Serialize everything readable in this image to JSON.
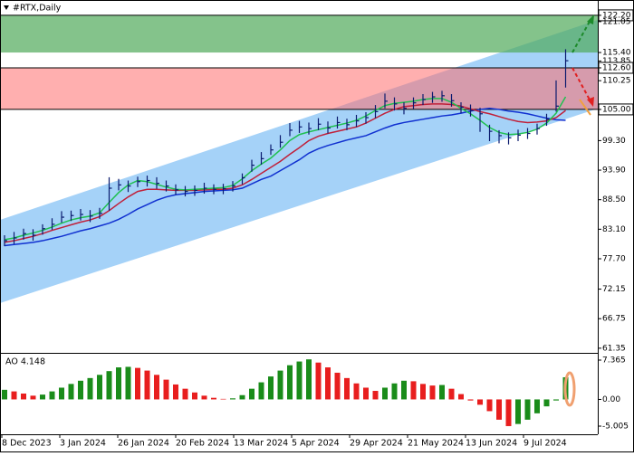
{
  "chart_data": [
    {
      "type": "ohlc",
      "title": "#RTX,Daily",
      "x_labels": [
        "8 Dec 2023",
        "3 Jan 2024",
        "26 Jan 2024",
        "20 Feb 2024",
        "13 Mar 2024",
        "5 Apr 2024",
        "29 Apr 2024",
        "21 May 2024",
        "13 Jun 2024",
        "9 Jul 2024"
      ],
      "ylim": [
        60.5,
        125.0
      ],
      "yticks": [
        {
          "value": 122.2,
          "label": "122.20"
        },
        {
          "value": 121.05,
          "label": "121.05"
        },
        {
          "value": 115.4,
          "label": "115.40"
        },
        {
          "value": 113.85,
          "label": "113.85"
        },
        {
          "value": 112.6,
          "label": "112.60"
        },
        {
          "value": 110.25,
          "label": "110.25"
        },
        {
          "value": 105.0,
          "label": "105.00"
        },
        {
          "value": 99.3,
          "label": "99.30"
        },
        {
          "value": 93.9,
          "label": "93.90"
        },
        {
          "value": 88.5,
          "label": "88.50"
        },
        {
          "value": 83.1,
          "label": "83.10"
        },
        {
          "value": 77.7,
          "label": "77.70"
        },
        {
          "value": 72.15,
          "label": "72.15"
        },
        {
          "value": 66.75,
          "label": "66.75"
        },
        {
          "value": 61.35,
          "label": "61.35"
        }
      ],
      "grid": false,
      "marked_levels": [
        122.2,
        112.6,
        105.0
      ],
      "zones": [
        {
          "from": 122.2,
          "to": 115.4,
          "color": "rgba(80,170,90,0.7)"
        },
        {
          "from": 112.6,
          "to": 105.0,
          "color": "rgba(255,110,110,0.55)"
        }
      ],
      "bar_color": "#0a1a6e",
      "high": [
        82.0,
        82.6,
        83.2,
        83.1,
        84.0,
        85.1,
        86.4,
        86.5,
        86.8,
        86.6,
        87.0,
        92.6,
        92.3,
        92.0,
        92.7,
        92.9,
        92.6,
        92.0,
        91.3,
        91.0,
        91.1,
        91.6,
        91.3,
        91.4,
        91.9,
        93.3,
        95.8,
        97.2,
        98.6,
        100.3,
        102.5,
        102.9,
        102.6,
        103.4,
        102.8,
        103.7,
        103.3,
        104.0,
        104.5,
        105.8,
        107.9,
        107.2,
        106.3,
        107.2,
        107.8,
        108.2,
        108.4,
        107.8,
        106.3,
        105.9,
        105.3,
        102.2,
        101.2,
        100.8,
        101.3,
        101.6,
        102.4,
        104.2,
        110.3,
        116.0
      ],
      "low": [
        80.0,
        80.4,
        81.2,
        81.0,
        82.1,
        83.0,
        84.3,
        84.6,
        84.7,
        84.4,
        85.0,
        86.5,
        90.2,
        89.9,
        90.8,
        90.9,
        90.5,
        90.0,
        89.4,
        89.1,
        89.2,
        89.6,
        89.5,
        89.5,
        90.0,
        91.3,
        93.6,
        94.9,
        96.7,
        98.0,
        100.1,
        100.7,
        100.4,
        101.2,
        100.6,
        101.5,
        101.2,
        101.8,
        102.4,
        103.4,
        105.2,
        104.8,
        104.1,
        105.1,
        105.8,
        106.2,
        106.4,
        105.5,
        104.3,
        103.7,
        100.9,
        99.2,
        98.8,
        98.6,
        99.2,
        99.6,
        100.4,
        102.0,
        104.6,
        109.0
      ],
      "close": [
        81.0,
        81.5,
        82.3,
        82.0,
        83.2,
        84.0,
        85.3,
        85.6,
        85.8,
        85.5,
        86.0,
        90.6,
        91.2,
        91.0,
        91.8,
        92.0,
        91.5,
        91.0,
        90.3,
        90.0,
        90.2,
        90.6,
        90.4,
        90.5,
        91.0,
        92.5,
        94.8,
        96.0,
        97.6,
        99.0,
        101.2,
        101.8,
        101.5,
        102.3,
        101.6,
        102.6,
        102.2,
        102.9,
        103.5,
        104.6,
        106.5,
        106.0,
        105.2,
        106.2,
        106.8,
        107.3,
        107.5,
        106.6,
        105.4,
        104.8,
        104.2,
        101.0,
        100.2,
        99.8,
        100.3,
        100.6,
        101.5,
        103.2,
        105.6,
        113.9
      ],
      "moving_averages": [
        {
          "color": "#1030d0",
          "values": [
            80.1,
            80.3,
            80.5,
            80.7,
            81.0,
            81.4,
            81.8,
            82.3,
            82.8,
            83.2,
            83.7,
            84.2,
            84.9,
            85.8,
            86.8,
            87.6,
            88.4,
            89.0,
            89.4,
            89.6,
            89.8,
            90.0,
            90.1,
            90.2,
            90.3,
            90.6,
            91.4,
            92.2,
            92.8,
            93.8,
            94.8,
            95.8,
            97.0,
            97.8,
            98.4,
            98.9,
            99.4,
            99.8,
            100.2,
            100.9,
            101.6,
            102.2,
            102.6,
            102.9,
            103.2,
            103.5,
            103.8,
            104.0,
            104.3,
            104.7,
            105.0,
            105.2,
            105.0,
            104.7,
            104.5,
            104.2,
            103.8,
            103.4,
            103.1,
            103.0
          ]
        },
        {
          "color": "#c0203a",
          "values": [
            80.7,
            81.0,
            81.4,
            81.8,
            82.3,
            82.9,
            83.4,
            83.9,
            84.4,
            84.8,
            85.4,
            86.5,
            87.8,
            89.0,
            90.0,
            90.4,
            90.4,
            90.3,
            90.2,
            90.2,
            90.2,
            90.3,
            90.4,
            90.4,
            90.6,
            91.2,
            92.2,
            93.3,
            94.4,
            95.5,
            96.8,
            98.0,
            99.3,
            100.1,
            100.6,
            101.0,
            101.4,
            101.8,
            102.5,
            103.4,
            104.3,
            105.0,
            105.5,
            105.7,
            105.9,
            106.0,
            106.0,
            105.9,
            105.6,
            105.1,
            104.6,
            104.2,
            103.7,
            103.2,
            102.8,
            102.6,
            102.7,
            102.9,
            103.5,
            104.8
          ]
        },
        {
          "color": "#20c050",
          "values": [
            81.2,
            81.5,
            82.0,
            82.4,
            82.9,
            83.5,
            84.2,
            84.8,
            85.2,
            85.5,
            86.1,
            88.0,
            89.8,
            91.2,
            92.0,
            91.8,
            91.3,
            90.8,
            90.4,
            90.3,
            90.4,
            90.5,
            90.6,
            90.7,
            91.1,
            92.3,
            93.8,
            95.0,
            96.1,
            97.6,
            99.3,
            100.4,
            100.9,
            101.3,
            101.7,
            102.1,
            102.5,
            103.0,
            103.8,
            104.8,
            105.7,
            106.1,
            106.3,
            106.5,
            106.8,
            107.0,
            107.0,
            106.3,
            105.2,
            104.2,
            103.0,
            101.7,
            100.8,
            100.4,
            100.5,
            100.8,
            101.4,
            102.5,
            104.3,
            107.3
          ]
        }
      ]
    },
    {
      "type": "histogram",
      "label": "AO 4.148",
      "ylim": [
        -6.53,
        8.38
      ],
      "yticks": [
        {
          "value": 7.365,
          "label": "7.365"
        },
        {
          "value": 0,
          "label": "0.00"
        },
        {
          "value": -5.005,
          "label": "-5.005"
        }
      ],
      "up_color": "#1a8c1a",
      "down_color": "#e81e1e",
      "values": [
        1.8,
        1.5,
        1.1,
        0.7,
        0.9,
        1.5,
        2.2,
        2.9,
        3.5,
        4.0,
        4.6,
        5.3,
        6.0,
        6.1,
        5.9,
        5.4,
        4.6,
        3.7,
        2.8,
        2.0,
        1.3,
        0.7,
        0.3,
        0.1,
        0.2,
        0.8,
        2.0,
        3.2,
        4.3,
        5.4,
        6.4,
        7.1,
        7.5,
        6.9,
        6.0,
        5.0,
        4.0,
        3.0,
        2.2,
        1.6,
        2.2,
        3.0,
        3.5,
        3.4,
        2.9,
        2.6,
        2.7,
        2.0,
        1.0,
        -0.2,
        -1.0,
        -2.2,
        -3.8,
        -5.0,
        -4.6,
        -3.8,
        -2.6,
        -1.3,
        -0.2,
        4.148
      ]
    }
  ]
}
